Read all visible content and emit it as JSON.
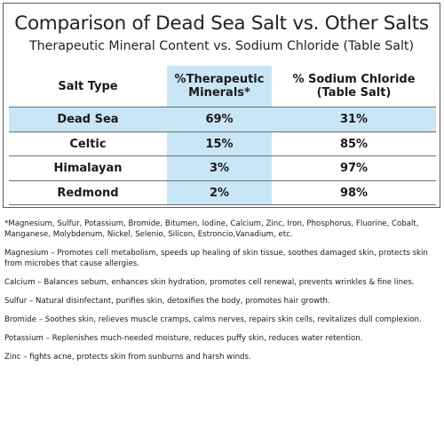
{
  "header": {
    "title": "Comparison of Dead Sea Salt vs. Other Salts",
    "subtitle": "Therapeutic Mineral Content vs. Sodium Chloride (Table Salt)"
  },
  "table": {
    "columns": [
      "Salt Type",
      "%Therapeutic Minerals*",
      "% Sodium Chloride (Table Salt)"
    ],
    "col_lines": [
      [
        "Salt Type"
      ],
      [
        "%Therapeutic",
        "Minerals*"
      ],
      [
        "% Sodium Chloride",
        "(Table Salt)"
      ]
    ],
    "rows": [
      {
        "salt": "Dead Sea",
        "minerals": "69%",
        "sodium": "31%"
      },
      {
        "salt": "Celtic",
        "minerals": "15%",
        "sodium": "85%"
      },
      {
        "salt": "Himalayan",
        "minerals": "3%",
        "sodium": "97%"
      },
      {
        "salt": "Redmond",
        "minerals": "2%",
        "sodium": "98%"
      }
    ],
    "highlight_color": "#c9e6f6"
  },
  "notes": [
    "*Magnesium, Sulfur, Potassium, Bromide, Bitumen, Iodine, Calcium, Zinc, Iron, Phosphorus, Fluorine, Cobalt, Manganese, Molybdenum, Nickel, Selenio, Silicon, Estroncio,Vanadium, etc.",
    "Magnesium – Promotes cell metabolism, speeds up healing of skin tissue, soothes damaged skin, protects skin from microbes that cause allergies.",
    "Calcium – Balances sebum, enhances skin hydration, promotes cell renewal, prevents wrinkles & fine lines.",
    "Sulfur – Natural disinfectant, purifies skin, detoxifies the body, promotes hair growth.",
    "Bromide – Soothes skin, relieves muscle cramps, calms nerves, repairs skin cells, revitalizes dull complexion.",
    "Potassium – Replenishes much-needed moisture, reduces puffy skin, reduces water retention.",
    "Zinc – fights acne, protects skin from sunburns and harsh winds."
  ]
}
